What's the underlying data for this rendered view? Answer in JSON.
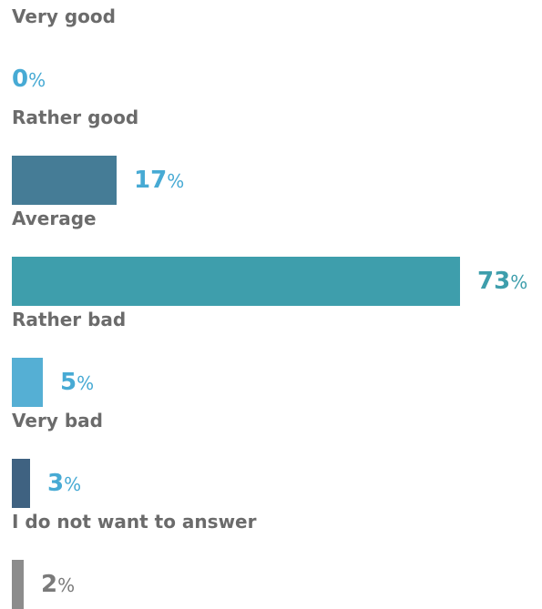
{
  "chart_data": {
    "type": "bar",
    "orientation": "horizontal",
    "unit": "%",
    "xlim": [
      0,
      73
    ],
    "categories": [
      "Very good",
      "Rather good",
      "Average",
      "Rather bad",
      "Very bad",
      "I do not want to answer"
    ],
    "values": [
      0,
      17,
      73,
      5,
      3,
      2
    ],
    "bar_colors": [
      "#4a7c96",
      "#457c96",
      "#3e9eac",
      "#55afd4",
      "#3f6281",
      "#8c8c8c"
    ],
    "value_colors": [
      "#47aad4",
      "#47aad4",
      "#3e9eac",
      "#47aad4",
      "#47aad4",
      "#7a7a7a"
    ],
    "label_color": "#6b6b6b"
  }
}
